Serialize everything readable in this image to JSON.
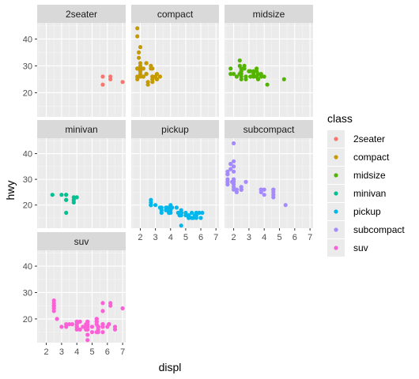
{
  "chart_data": {
    "type": "scatter",
    "xlabel": "displ",
    "ylabel": "hwy",
    "xlim": [
      1.4,
      7.2
    ],
    "ylim": [
      11,
      46
    ],
    "x_ticks": [
      2,
      3,
      4,
      5,
      6,
      7
    ],
    "y_ticks": [
      20,
      30,
      40
    ],
    "x_tick_labels": [
      "2",
      "3",
      "4",
      "5",
      "6",
      "7"
    ],
    "y_tick_labels": [
      "20",
      "30",
      "40"
    ],
    "grid": true,
    "legend": {
      "title": "class",
      "placement": "right",
      "entries": [
        "2seater",
        "compact",
        "midsize",
        "minivan",
        "pickup",
        "subcompact",
        "suv"
      ]
    },
    "colors": {
      "2seater": "#F8766D",
      "compact": "#C49A00",
      "midsize": "#53B400",
      "minivan": "#00C094",
      "pickup": "#00B6EB",
      "subcompact": "#A58AFF",
      "suv": "#FB61D7"
    },
    "facets": [
      {
        "name": "2seater",
        "points": [
          [
            5.7,
            26
          ],
          [
            5.7,
            23
          ],
          [
            6.2,
            26
          ],
          [
            6.2,
            25
          ],
          [
            7.0,
            24
          ]
        ]
      },
      {
        "name": "compact",
        "points": [
          [
            1.8,
            29
          ],
          [
            1.8,
            29
          ],
          [
            2.0,
            31
          ],
          [
            2.0,
            30
          ],
          [
            2.8,
            26
          ],
          [
            2.8,
            26
          ],
          [
            3.1,
            27
          ],
          [
            1.8,
            26
          ],
          [
            1.8,
            25
          ],
          [
            2.0,
            28
          ],
          [
            2.0,
            27
          ],
          [
            2.8,
            25
          ],
          [
            2.8,
            25
          ],
          [
            3.1,
            25
          ],
          [
            3.1,
            25
          ],
          [
            2.2,
            26
          ],
          [
            2.2,
            29
          ],
          [
            2.4,
            27
          ],
          [
            2.4,
            31
          ],
          [
            3.0,
            26
          ],
          [
            3.3,
            26
          ],
          [
            2.2,
            26
          ],
          [
            2.2,
            29
          ],
          [
            2.4,
            27
          ],
          [
            2.4,
            31
          ],
          [
            3.0,
            26
          ],
          [
            1.8,
            44
          ],
          [
            1.8,
            41
          ],
          [
            1.8,
            29
          ],
          [
            2.0,
            26
          ],
          [
            2.0,
            28
          ],
          [
            2.8,
            29
          ],
          [
            1.9,
            29
          ],
          [
            2.0,
            29
          ],
          [
            2.5,
            23
          ],
          [
            2.5,
            24
          ],
          [
            2.8,
            24
          ],
          [
            1.9,
            33
          ],
          [
            1.9,
            35
          ],
          [
            2.0,
            37
          ],
          [
            2.7,
            30
          ],
          [
            2.7,
            29
          ]
        ]
      },
      {
        "name": "midsize",
        "points": [
          [
            2.8,
            26
          ],
          [
            3.1,
            26
          ],
          [
            4.2,
            23
          ],
          [
            2.4,
            32
          ],
          [
            2.4,
            27
          ],
          [
            3.1,
            26
          ],
          [
            3.5,
            26
          ],
          [
            3.6,
            25
          ],
          [
            2.4,
            27
          ],
          [
            3.0,
            28
          ],
          [
            3.5,
            26
          ],
          [
            3.5,
            26
          ],
          [
            2.5,
            25
          ],
          [
            2.5,
            27
          ],
          [
            3.3,
            26
          ],
          [
            1.8,
            29
          ],
          [
            2.5,
            28
          ],
          [
            2.5,
            29
          ],
          [
            2.7,
            29
          ],
          [
            3.3,
            28
          ],
          [
            3.8,
            26
          ],
          [
            3.8,
            26
          ],
          [
            5.3,
            25
          ],
          [
            2.0,
            27
          ],
          [
            2.5,
            29
          ],
          [
            2.8,
            25
          ],
          [
            2.4,
            30
          ],
          [
            2.7,
            30
          ],
          [
            3.5,
            28
          ],
          [
            3.8,
            27
          ],
          [
            3.1,
            28
          ],
          [
            2.2,
            26
          ],
          [
            2.4,
            27
          ],
          [
            3.0,
            28
          ],
          [
            3.3,
            27
          ],
          [
            1.8,
            27
          ],
          [
            3.5,
            29
          ],
          [
            2.5,
            26
          ],
          [
            4.0,
            26
          ],
          [
            2.5,
            28
          ],
          [
            3.6,
            27
          ]
        ]
      },
      {
        "name": "minivan",
        "points": [
          [
            2.4,
            24
          ],
          [
            3.0,
            24
          ],
          [
            3.3,
            22
          ],
          [
            3.3,
            22
          ],
          [
            3.3,
            24
          ],
          [
            3.3,
            24
          ],
          [
            3.3,
            17
          ],
          [
            3.8,
            22
          ],
          [
            3.8,
            21
          ],
          [
            3.8,
            23
          ],
          [
            4.0,
            23
          ]
        ]
      },
      {
        "name": "pickup",
        "points": [
          [
            2.7,
            20
          ],
          [
            2.7,
            20
          ],
          [
            3.4,
            19
          ],
          [
            3.4,
            17
          ],
          [
            4.0,
            17
          ],
          [
            4.7,
            12
          ],
          [
            4.7,
            17
          ],
          [
            4.7,
            16
          ],
          [
            5.2,
            16
          ],
          [
            5.2,
            15
          ],
          [
            5.7,
            17
          ],
          [
            5.9,
            17
          ],
          [
            3.7,
            19
          ],
          [
            3.7,
            18
          ],
          [
            3.9,
            17
          ],
          [
            3.9,
            17
          ],
          [
            4.7,
            17
          ],
          [
            4.7,
            17
          ],
          [
            4.7,
            17
          ],
          [
            5.2,
            15
          ],
          [
            5.2,
            16
          ],
          [
            2.7,
            22
          ],
          [
            2.7,
            21
          ],
          [
            2.7,
            20
          ],
          [
            4.0,
            20
          ],
          [
            4.0,
            19
          ],
          [
            4.0,
            19
          ],
          [
            4.0,
            19
          ],
          [
            4.7,
            17
          ],
          [
            4.7,
            17
          ],
          [
            4.7,
            17
          ],
          [
            5.7,
            15
          ],
          [
            3.9,
            17
          ],
          [
            4.7,
            17
          ],
          [
            3.4,
            18
          ],
          [
            6.1,
            17
          ],
          [
            4.6,
            17
          ],
          [
            5.4,
            17
          ],
          [
            4.0,
            18
          ],
          [
            4.7,
            17
          ],
          [
            5.7,
            16
          ],
          [
            4.6,
            16
          ],
          [
            4.6,
            16
          ],
          [
            5.4,
            15
          ],
          [
            4.7,
            18
          ],
          [
            3.3,
            19
          ],
          [
            3.7,
            18
          ],
          [
            4.5,
            17
          ],
          [
            5.0,
            16
          ],
          [
            5.0,
            17
          ],
          [
            5.5,
            15
          ],
          [
            6.0,
            15
          ],
          [
            4.4,
            19
          ],
          [
            3.9,
            18
          ],
          [
            3.8,
            19
          ],
          [
            4.1,
            19
          ],
          [
            3.0,
            20
          ],
          [
            5.6,
            16
          ]
        ]
      },
      {
        "name": "subcompact",
        "points": [
          [
            1.6,
            33
          ],
          [
            1.6,
            32
          ],
          [
            1.6,
            32
          ],
          [
            1.6,
            29
          ],
          [
            1.6,
            32
          ],
          [
            1.8,
            34
          ],
          [
            1.8,
            36
          ],
          [
            1.8,
            36
          ],
          [
            2.0,
            29
          ],
          [
            2.0,
            26
          ],
          [
            2.0,
            27
          ],
          [
            2.0,
            28
          ],
          [
            2.0,
            30
          ],
          [
            2.0,
            30
          ],
          [
            2.0,
            33
          ],
          [
            2.0,
            35
          ],
          [
            2.0,
            37
          ],
          [
            2.0,
            35
          ],
          [
            2.0,
            44
          ],
          [
            2.5,
            27
          ],
          [
            2.5,
            26
          ],
          [
            2.5,
            26
          ],
          [
            2.8,
            29
          ],
          [
            3.8,
            26
          ],
          [
            3.8,
            25
          ],
          [
            3.8,
            26
          ],
          [
            4.0,
            24
          ],
          [
            4.0,
            26
          ],
          [
            4.6,
            23
          ],
          [
            4.6,
            26
          ],
          [
            4.6,
            25
          ],
          [
            4.6,
            24
          ],
          [
            5.4,
            20
          ],
          [
            2.2,
            26
          ],
          [
            2.2,
            25
          ],
          [
            2.5,
            26
          ],
          [
            2.5,
            26
          ],
          [
            1.9,
            29
          ],
          [
            1.9,
            29
          ],
          [
            2.5,
            27
          ],
          [
            2.5,
            26
          ],
          [
            1.6,
            30
          ],
          [
            1.6,
            28
          ],
          [
            4.6,
            26
          ],
          [
            2.5,
            26
          ]
        ]
      },
      {
        "name": "suv",
        "points": [
          [
            5.3,
            20
          ],
          [
            5.3,
            15
          ],
          [
            5.3,
            20
          ],
          [
            5.7,
            17
          ],
          [
            6.0,
            17
          ],
          [
            5.7,
            26
          ],
          [
            5.7,
            23
          ],
          [
            6.2,
            26
          ],
          [
            6.2,
            25
          ],
          [
            7.0,
            24
          ],
          [
            4.7,
            19
          ],
          [
            4.7,
            19
          ],
          [
            5.7,
            18
          ],
          [
            5.7,
            18
          ],
          [
            6.1,
            18
          ],
          [
            6.1,
            18
          ],
          [
            4.0,
            17
          ],
          [
            4.0,
            17
          ],
          [
            4.6,
            16
          ],
          [
            5.0,
            17
          ],
          [
            4.2,
            19
          ],
          [
            4.2,
            19
          ],
          [
            4.6,
            17
          ],
          [
            4.6,
            17
          ],
          [
            5.4,
            17
          ],
          [
            5.4,
            17
          ],
          [
            5.4,
            17
          ],
          [
            4.7,
            16
          ],
          [
            4.7,
            12
          ],
          [
            4.7,
            17
          ],
          [
            4.7,
            16
          ],
          [
            5.7,
            15
          ],
          [
            6.1,
            18
          ],
          [
            4.0,
            17
          ],
          [
            4.2,
            16
          ],
          [
            4.4,
            17
          ],
          [
            5.4,
            15
          ],
          [
            5.4,
            17
          ],
          [
            5.4,
            16
          ],
          [
            5.7,
            18
          ],
          [
            6.5,
            16
          ],
          [
            5.7,
            17
          ],
          [
            4.7,
            14
          ],
          [
            4.7,
            18
          ],
          [
            2.5,
            25
          ],
          [
            2.5,
            27
          ],
          [
            2.5,
            25
          ],
          [
            2.7,
            20
          ],
          [
            2.5,
            23
          ],
          [
            3.5,
            18
          ],
          [
            3.3,
            18
          ],
          [
            3.3,
            17
          ],
          [
            4.0,
            19
          ],
          [
            4.0,
            18
          ],
          [
            4.6,
            16
          ],
          [
            4.2,
            16
          ],
          [
            4.0,
            16
          ],
          [
            4.0,
            18
          ],
          [
            5.4,
            17
          ],
          [
            5.0,
            15
          ],
          [
            4.6,
            18
          ],
          [
            2.5,
            26
          ],
          [
            4.7,
            17
          ],
          [
            2.5,
            25
          ],
          [
            2.5,
            24
          ],
          [
            4.0,
            19
          ],
          [
            3.7,
            18
          ],
          [
            3.0,
            17
          ],
          [
            5.3,
            19
          ],
          [
            5.3,
            18
          ],
          [
            6.5,
            17
          ],
          [
            5.3,
            19
          ]
        ]
      }
    ]
  }
}
